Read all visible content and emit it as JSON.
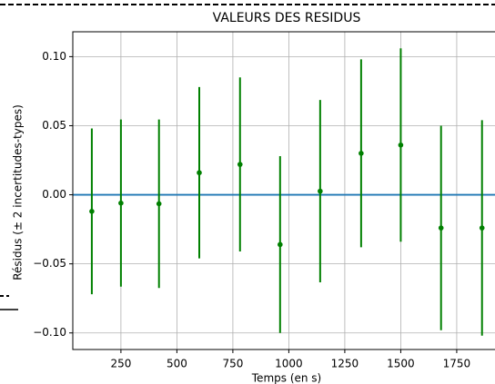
{
  "chart_data": {
    "type": "errorbar",
    "title": "VALEURS DES RESIDUS",
    "xlabel": "Temps (en s)",
    "ylabel": "Résidus (± 2 incertitudes-types)",
    "x": [
      120,
      250,
      420,
      600,
      782,
      961,
      1140,
      1323,
      1500,
      1680,
      1863
    ],
    "values": [
      -0.012,
      -0.006,
      -0.0065,
      0.016,
      0.022,
      -0.036,
      0.0026,
      0.03,
      0.036,
      -0.024,
      -0.024
    ],
    "errors": [
      0.06,
      0.0605,
      0.061,
      0.062,
      0.063,
      0.064,
      0.066,
      0.068,
      0.07,
      0.074,
      0.078
    ],
    "color": "#008000",
    "reference_line": 0,
    "reference_color": "#1f77b4",
    "xlim": [
      35,
      1921
    ],
    "ylim": [
      -0.112,
      0.118
    ],
    "xticks": [
      250,
      500,
      750,
      1000,
      1250,
      1500,
      1750
    ],
    "yticks": [
      {
        "value": -0.1,
        "label": "−0.10"
      },
      {
        "value": -0.05,
        "label": "−0.05"
      },
      {
        "value": 0,
        "label": "0.00"
      },
      {
        "value": 0.05,
        "label": "0.05"
      },
      {
        "value": 0.1,
        "label": "0.10"
      }
    ],
    "grid": true
  }
}
